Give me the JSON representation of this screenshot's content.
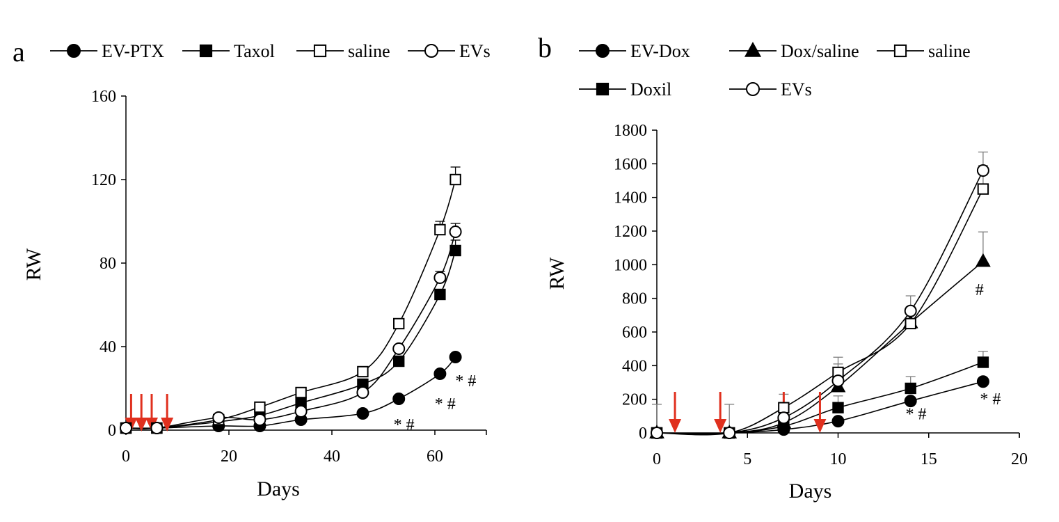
{
  "colors": {
    "arrow": "#e0301e",
    "ink": "#000000",
    "error_bar": "#7f7f7f"
  },
  "chart_data": [
    {
      "panel_label": "a",
      "type": "line",
      "xlabel": "Days",
      "ylabel": "RW",
      "xlim": [
        0,
        70
      ],
      "ylim": [
        0,
        160
      ],
      "xticks": [
        0,
        20,
        40,
        60
      ],
      "yticks": [
        0,
        40,
        80,
        120,
        160
      ],
      "treatment_arrow_days": [
        1,
        3,
        5,
        8
      ],
      "series": [
        {
          "name": "EV-PTX",
          "marker": "filled-circle",
          "x": [
            0,
            6,
            18,
            26,
            34,
            46,
            53,
            61,
            64
          ],
          "y": [
            1,
            1,
            2,
            2,
            5,
            8,
            15,
            27,
            35
          ],
          "err": [
            0,
            0,
            0,
            0,
            0,
            0,
            0,
            0,
            0
          ]
        },
        {
          "name": "Taxol",
          "marker": "filled-square",
          "x": [
            0,
            6,
            18,
            26,
            34,
            46,
            53,
            61,
            64
          ],
          "y": [
            1,
            1,
            4,
            7,
            13,
            22,
            33,
            65,
            86
          ],
          "err": [
            0,
            0,
            0,
            0,
            0,
            0,
            0,
            0,
            5
          ]
        },
        {
          "name": "saline",
          "marker": "open-square",
          "x": [
            0,
            6,
            18,
            26,
            34,
            46,
            53,
            61,
            64
          ],
          "y": [
            1,
            1,
            5,
            11,
            18,
            28,
            51,
            96,
            120
          ],
          "err": [
            0,
            0,
            0,
            0,
            0,
            0,
            0,
            4,
            6
          ]
        },
        {
          "name": "EVs",
          "marker": "open-circle",
          "x": [
            0,
            6,
            18,
            26,
            34,
            46,
            53,
            61,
            64
          ],
          "y": [
            1,
            1,
            6,
            5,
            9,
            18,
            39,
            73,
            95
          ],
          "err": [
            0,
            0,
            0,
            0,
            0,
            0,
            0,
            3,
            4
          ]
        }
      ],
      "annotations": [
        {
          "text": "* #",
          "x": 54,
          "y": 0
        },
        {
          "text": "* #",
          "x": 62,
          "y": 10
        },
        {
          "text": "* #",
          "x": 66,
          "y": 21
        }
      ]
    },
    {
      "panel_label": "b",
      "type": "line",
      "xlabel": "Days",
      "ylabel": "RW",
      "xlim": [
        0,
        20
      ],
      "ylim": [
        0,
        1800
      ],
      "xticks": [
        0,
        5,
        10,
        15,
        20
      ],
      "yticks": [
        0,
        200,
        400,
        600,
        800,
        1000,
        1200,
        1400,
        1600,
        1800
      ],
      "treatment_arrow_days": [
        1,
        3.5,
        7,
        9
      ],
      "series": [
        {
          "name": "EV-Dox",
          "marker": "filled-circle",
          "x": [
            0,
            4,
            7,
            10,
            14,
            18
          ],
          "y": [
            0,
            0,
            20,
            70,
            190,
            305
          ],
          "err": [
            0,
            0,
            0,
            0,
            0,
            0
          ]
        },
        {
          "name": "Dox/saline",
          "marker": "filled-triangle",
          "x": [
            0,
            4,
            7,
            10,
            14,
            18
          ],
          "y": [
            0,
            0,
            60,
            275,
            655,
            1020
          ],
          "err": [
            0,
            0,
            50,
            40,
            60,
            175
          ]
        },
        {
          "name": "saline",
          "marker": "open-square",
          "x": [
            0,
            4,
            7,
            10,
            14,
            18
          ],
          "y": [
            0,
            0,
            150,
            360,
            650,
            1450
          ],
          "err": [
            0,
            0,
            80,
            90,
            100,
            140
          ]
        },
        {
          "name": "Doxil",
          "marker": "filled-square",
          "x": [
            0,
            4,
            7,
            10,
            14,
            18
          ],
          "y": [
            0,
            0,
            40,
            150,
            265,
            420
          ],
          "err": [
            170,
            170,
            60,
            70,
            70,
            65
          ]
        },
        {
          "name": "EVs",
          "marker": "open-circle",
          "x": [
            0,
            4,
            7,
            10,
            14,
            18
          ],
          "y": [
            0,
            0,
            90,
            310,
            725,
            1560
          ],
          "err": [
            0,
            0,
            0,
            100,
            90,
            110
          ]
        }
      ],
      "annotations": [
        {
          "text": "#",
          "x": 17.8,
          "y": 820
        },
        {
          "text": "* #",
          "x": 14.3,
          "y": 80
        },
        {
          "text": "* #",
          "x": 18.4,
          "y": 170
        }
      ]
    }
  ]
}
